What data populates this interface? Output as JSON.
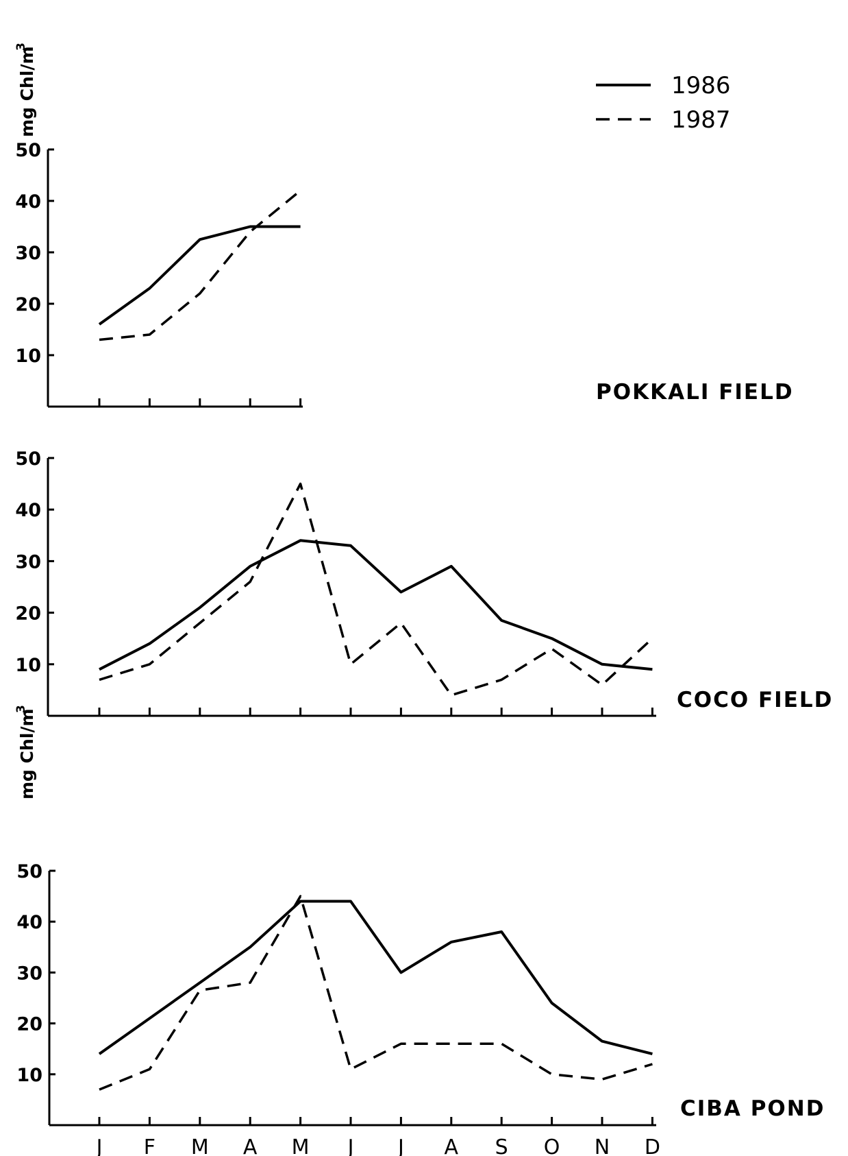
{
  "chart_data": [
    {
      "type": "line",
      "title": "POKKALI FIELD",
      "ylabel": "mg Chl/m",
      "ylabel_sup": "3",
      "ylim": [
        0,
        50
      ],
      "yticks": [
        "10",
        "20",
        "30",
        "40",
        "50"
      ],
      "categories": [
        "J",
        "F",
        "M",
        "A",
        "M"
      ],
      "series": [
        {
          "name": "1986",
          "style": "solid",
          "values": [
            16,
            23,
            32.5,
            35,
            35
          ]
        },
        {
          "name": "1987",
          "style": "dashed",
          "values": [
            13,
            14,
            22,
            34,
            42
          ]
        }
      ]
    },
    {
      "type": "line",
      "title": "COCO FIELD",
      "ylim": [
        0,
        50
      ],
      "yticks": [
        "10",
        "20",
        "30",
        "40",
        "50"
      ],
      "categories": [
        "J",
        "F",
        "M",
        "A",
        "M",
        "J",
        "J",
        "A",
        "S",
        "O",
        "N",
        "D"
      ],
      "series": [
        {
          "name": "1986",
          "style": "solid",
          "values": [
            9,
            14,
            21,
            29,
            34,
            33,
            24,
            29,
            18.5,
            15,
            10,
            9
          ]
        },
        {
          "name": "1987",
          "style": "dashed",
          "values": [
            7,
            10,
            18,
            26,
            45,
            10,
            18,
            4,
            7,
            13,
            6,
            15
          ]
        }
      ]
    },
    {
      "type": "line",
      "title": "CIBA POND",
      "ylabel": "mg Chl/m",
      "ylabel_sup": "3",
      "ylim": [
        0,
        50
      ],
      "yticks": [
        "10",
        "20",
        "30",
        "40",
        "50"
      ],
      "categories": [
        "J",
        "F",
        "M",
        "A",
        "M",
        "J",
        "J",
        "A",
        "S",
        "O",
        "N",
        "D"
      ],
      "series": [
        {
          "name": "1986",
          "style": "solid",
          "values": [
            14,
            21,
            28,
            35,
            44,
            44,
            30,
            36,
            38,
            24,
            16.5,
            14
          ]
        },
        {
          "name": "1987",
          "style": "dashed",
          "values": [
            7,
            11,
            26.5,
            28,
            45,
            11,
            16,
            16,
            16,
            10,
            9,
            12
          ]
        }
      ]
    }
  ],
  "legend": [
    {
      "label": "1986",
      "style": "solid"
    },
    {
      "label": "1987",
      "style": "dashed"
    }
  ]
}
